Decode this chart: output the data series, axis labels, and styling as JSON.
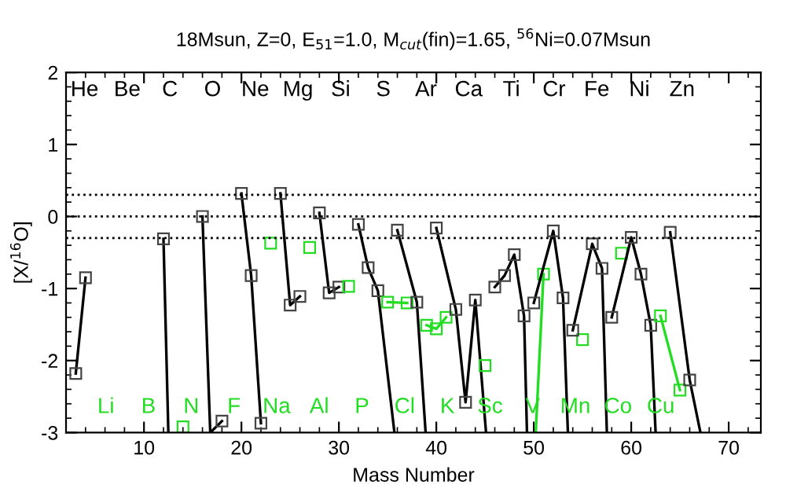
{
  "chart_data": {
    "type": "line",
    "title": "18Msun, Z=0, E$_{51}$=1.0, M$_{cut}$(fin)=1.65, $^{56}$Ni=0.07Msun",
    "xlabel": "Mass Number",
    "ylabel": "[X/$^{16}$O]",
    "xlim": [
      2,
      73.3
    ],
    "xticks": [
      10,
      20,
      30,
      40,
      50,
      60,
      70
    ],
    "ylim": [
      -3,
      2
    ],
    "yticks": [
      -3,
      -2,
      -1,
      0,
      1,
      2
    ],
    "marker": "square",
    "line_style": "solid",
    "grid": false,
    "legend": false,
    "ref_lines": [
      {
        "axis": "y",
        "value": 0.3,
        "color": "#000000",
        "line_style": "dotted"
      },
      {
        "axis": "y",
        "value": 0,
        "color": "#000000",
        "line_style": "dotted"
      },
      {
        "axis": "y",
        "value": -0.3,
        "color": "#000000",
        "line_style": "dotted"
      }
    ],
    "series": [
      {
        "color": "#000000",
        "x": [
          3,
          4
        ],
        "values": [
          -2.18,
          -0.85
        ]
      },
      {
        "color": "#000000",
        "x": [
          12,
          12.5
        ],
        "values": [
          -0.31,
          -3
        ]
      },
      {
        "color": "#22dd22",
        "x": [
          14
        ],
        "values": [
          -2.92
        ]
      },
      {
        "color": "#000000",
        "x": [
          16,
          16.8,
          18
        ],
        "values": [
          0.0,
          -3,
          -2.84
        ]
      },
      {
        "color": "#000000",
        "x": [
          20,
          21,
          22
        ],
        "values": [
          0.32,
          -0.82,
          -2.87
        ]
      },
      {
        "color": "#22dd22",
        "x": [
          23
        ],
        "values": [
          -0.37
        ]
      },
      {
        "color": "#000000",
        "x": [
          24,
          25,
          26
        ],
        "values": [
          0.32,
          -1.23,
          -1.11
        ]
      },
      {
        "color": "#22dd22",
        "x": [
          27
        ],
        "values": [
          -0.43
        ]
      },
      {
        "color": "#000000",
        "x": [
          28,
          29,
          30
        ],
        "values": [
          0.05,
          -1.06,
          -0.98
        ]
      },
      {
        "color": "#22dd22",
        "x": [
          31
        ],
        "values": [
          -0.97
        ]
      },
      {
        "color": "#000000",
        "x": [
          32,
          33,
          34,
          35.7
        ],
        "values": [
          -0.11,
          -0.71,
          -1.03,
          -3
        ]
      },
      {
        "color": "#22dd22",
        "x": [
          35,
          37
        ],
        "values": [
          -1.19,
          -1.2
        ]
      },
      {
        "color": "#000000",
        "x": [
          36,
          38,
          38.9
        ],
        "values": [
          -0.19,
          -1.19,
          -3
        ]
      },
      {
        "color": "#22dd22",
        "x": [
          39,
          40,
          41
        ],
        "values": [
          -1.51,
          -1.56,
          -1.4
        ]
      },
      {
        "color": "#000000",
        "x": [
          40,
          42,
          43,
          44,
          45.1
        ],
        "values": [
          -0.16,
          -1.29,
          -2.58,
          -1.16,
          -3
        ]
      },
      {
        "color": "#22dd22",
        "x": [
          45
        ],
        "values": [
          -2.07
        ]
      },
      {
        "color": "#000000",
        "x": [
          46,
          47,
          48,
          49,
          49.3
        ],
        "values": [
          -0.98,
          -0.82,
          -0.53,
          -1.38,
          -3
        ]
      },
      {
        "color": "#22dd22",
        "x": [
          50.2,
          51
        ],
        "values": [
          -3,
          -0.8
        ]
      },
      {
        "color": "#000000",
        "x": [
          50,
          52,
          53,
          53.5
        ],
        "values": [
          -1.2,
          -0.2,
          -1.13,
          -3
        ]
      },
      {
        "color": "#22dd22",
        "x": [
          55
        ],
        "values": [
          -1.71
        ]
      },
      {
        "color": "#000000",
        "x": [
          54,
          56,
          57,
          57.5
        ],
        "values": [
          -1.58,
          -0.38,
          -0.72,
          -3
        ]
      },
      {
        "color": "#22dd22",
        "x": [
          59
        ],
        "values": [
          -0.51
        ]
      },
      {
        "color": "#000000",
        "x": [
          58,
          60,
          61,
          62,
          62.5
        ],
        "values": [
          -1.4,
          -0.29,
          -0.8,
          -1.51,
          -3
        ]
      },
      {
        "color": "#22dd22",
        "x": [
          63,
          65
        ],
        "values": [
          -1.38,
          -2.41
        ]
      },
      {
        "color": "#000000",
        "x": [
          64,
          66,
          67.1
        ],
        "values": [
          -0.22,
          -2.27,
          -3
        ]
      }
    ],
    "annotations": [
      "He",
      "Li",
      "Be",
      "B",
      "C",
      "N",
      "O",
      "F",
      "Ne",
      "Na",
      "Mg",
      "Al",
      "Si",
      "P",
      "S",
      "Cl",
      "Ar",
      "K",
      "Ca",
      "Sc",
      "Ti",
      "V",
      "Cr",
      "Mn",
      "Fe",
      "Co",
      "Ni",
      "Cu",
      "Zn"
    ]
  }
}
